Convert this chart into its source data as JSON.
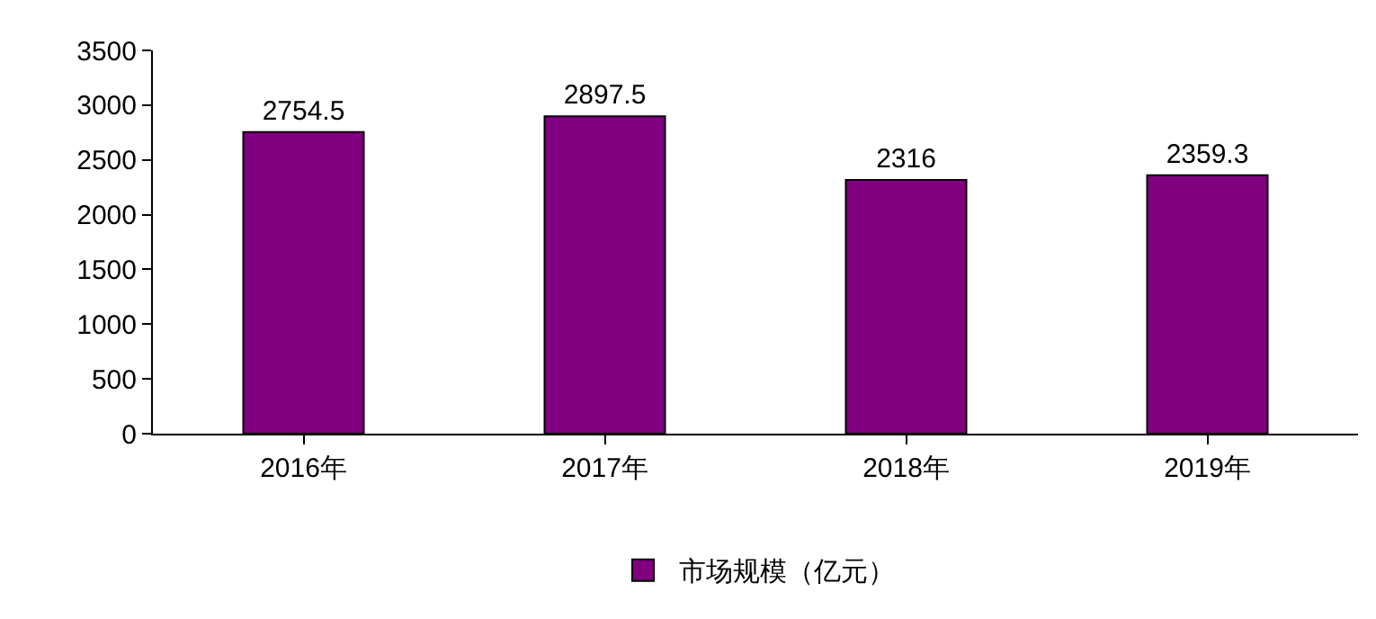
{
  "chart_data": {
    "type": "bar",
    "categories": [
      "2016年",
      "2017年",
      "2018年",
      "2019年"
    ],
    "series": [
      {
        "name": "市场规模（亿元）",
        "color": "#800080",
        "values": [
          2754.5,
          2897.5,
          2316,
          2359.3
        ]
      }
    ],
    "ylim": [
      0,
      3500
    ],
    "yticks": [
      0,
      500,
      1000,
      1500,
      2000,
      2500,
      3000,
      3500
    ],
    "data_labels": true,
    "grid": false,
    "legend": "bottom"
  }
}
